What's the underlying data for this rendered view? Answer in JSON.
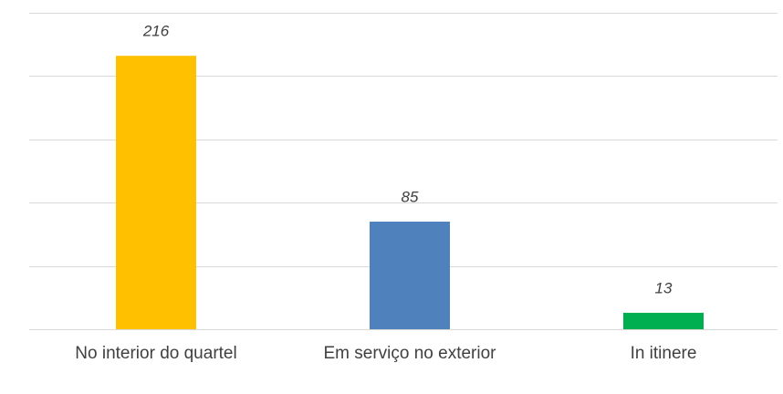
{
  "chart_data": {
    "type": "bar",
    "categories": [
      "No interior do quartel",
      "Em serviço no exterior",
      "In itinere"
    ],
    "values": [
      216,
      85,
      13
    ],
    "colors": [
      "#ffc000",
      "#4f81bd",
      "#00b050"
    ],
    "ylim": [
      0,
      250
    ],
    "yticks": [
      0,
      50,
      100,
      150,
      200,
      250
    ],
    "grid": true
  }
}
